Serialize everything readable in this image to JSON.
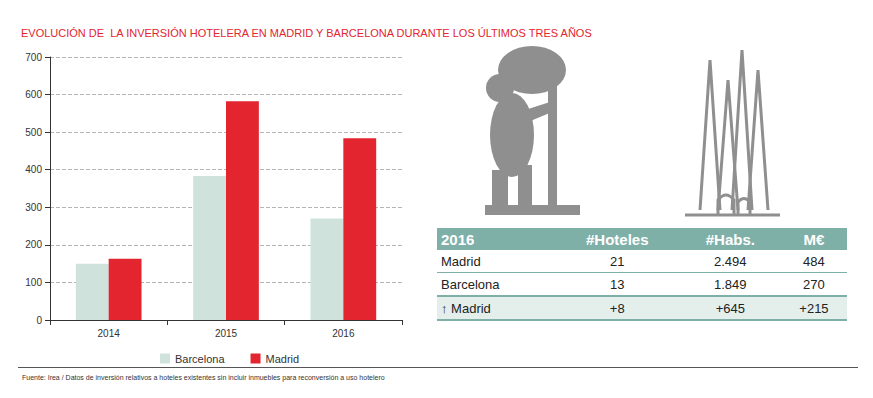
{
  "chart_data": {
    "type": "bar",
    "title": "EVOLUCIÓN DE  LA INVERSIÓN HOTELERA EN MADRID Y BARCELONA DURANTE LOS ÚLTIMOS TRES AÑOS",
    "categories": [
      "2014",
      "2015",
      "2016"
    ],
    "series": [
      {
        "name": "Barcelona",
        "color": "#cfe3dc",
        "values": [
          150,
          383,
          270
        ]
      },
      {
        "name": "Madrid",
        "color": "#e2252f",
        "values": [
          163,
          582,
          484
        ]
      }
    ],
    "ylim": [
      0,
      700
    ],
    "yticks": [
      0,
      100,
      200,
      300,
      400,
      500,
      600,
      700
    ],
    "grid": true,
    "legend": "bottom",
    "data_labels": false
  },
  "table": {
    "header": [
      "2016",
      "#Hoteles",
      "#Habs.",
      "M€"
    ],
    "rows": [
      [
        "Madrid",
        "21",
        "2.494",
        "484"
      ],
      [
        "Barcelona",
        "13",
        "1.849",
        "270"
      ],
      [
        "↑ Madrid",
        "+8",
        "+645",
        "+215"
      ]
    ]
  },
  "source": "Fuente: Irea / Datos de inversión relativos a hoteles existentes sin incluir inmuebles para reconversión a uso hotelero"
}
